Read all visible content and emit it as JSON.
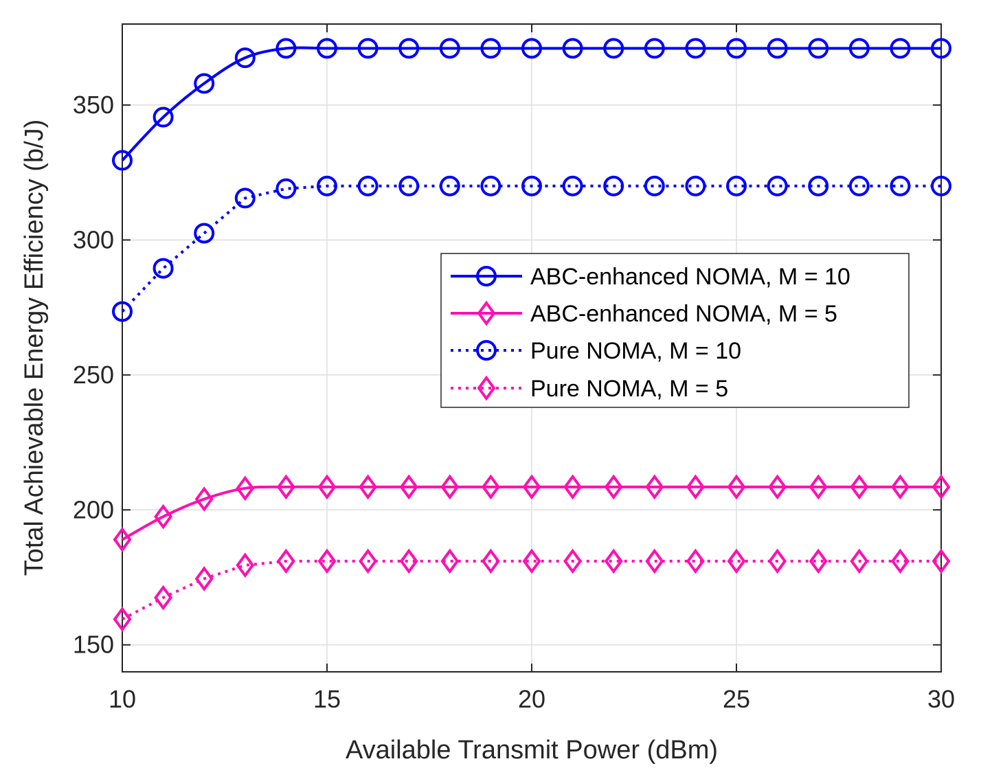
{
  "chart_data": {
    "type": "line",
    "xlabel": "Available Transmit Power (dBm)",
    "ylabel": "Total Achievable Energy Efficiency (b/J)",
    "xlim": [
      10,
      30
    ],
    "ylim": [
      140,
      380
    ],
    "xticks": [
      10,
      15,
      20,
      25,
      30
    ],
    "yticks": [
      150,
      200,
      250,
      300,
      350
    ],
    "grid": true,
    "legend_position": "center-right",
    "x": [
      10,
      11,
      12,
      13,
      14,
      15,
      16,
      17,
      18,
      19,
      20,
      21,
      22,
      23,
      24,
      25,
      26,
      27,
      28,
      29,
      30
    ],
    "series": [
      {
        "name": "ABC-enhanced NOMA, M = 10",
        "color": "#0000ff",
        "line": "solid",
        "marker": "circle",
        "values": [
          329.5,
          345.5,
          358,
          367.5,
          371,
          371,
          371,
          371,
          371,
          371,
          371,
          371,
          371,
          371,
          371,
          371,
          371,
          371,
          371,
          371,
          371
        ]
      },
      {
        "name": "ABC-enhanced NOMA, M = 5",
        "color": "#ff10b0",
        "line": "solid",
        "marker": "diamond",
        "values": [
          189,
          197.5,
          204,
          208,
          208.5,
          208.5,
          208.5,
          208.5,
          208.5,
          208.5,
          208.5,
          208.5,
          208.5,
          208.5,
          208.5,
          208.5,
          208.5,
          208.5,
          208.5,
          208.5,
          208.5
        ]
      },
      {
        "name": "Pure NOMA, M = 10",
        "color": "#0000ff",
        "line": "dotted",
        "marker": "circle",
        "values": [
          273.5,
          289.5,
          302.5,
          315.5,
          319,
          320,
          320,
          320,
          320,
          320,
          320,
          320,
          320,
          320,
          320,
          320,
          320,
          320,
          320,
          320,
          320
        ]
      },
      {
        "name": "Pure NOMA, M = 5",
        "color": "#ff10b0",
        "line": "dotted",
        "marker": "diamond",
        "values": [
          159.5,
          167.5,
          174.5,
          179.5,
          181,
          181,
          181,
          181,
          181,
          181,
          181,
          181,
          181,
          181,
          181,
          181,
          181,
          181,
          181,
          181,
          181
        ]
      }
    ]
  }
}
